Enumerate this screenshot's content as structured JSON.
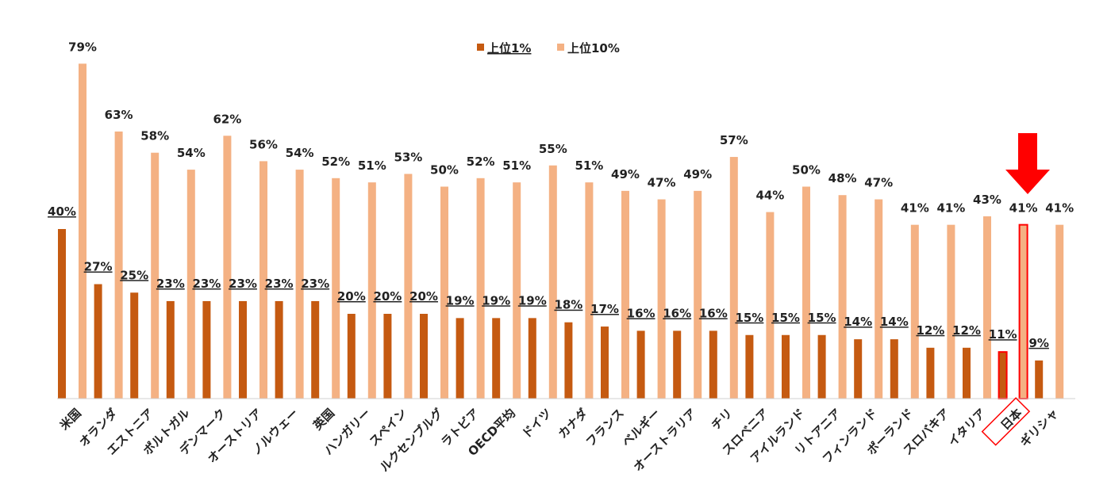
{
  "chart_data": {
    "type": "bar",
    "title": "",
    "xlabel": "",
    "ylabel": "",
    "ylim": [
      0,
      80
    ],
    "grid": false,
    "legend_position": "top-center",
    "categories": [
      "米国",
      "オランダ",
      "エストニア",
      "ポルトガル",
      "デンマーク",
      "オーストリア",
      "ノルウェー",
      "英国",
      "ハンガリー",
      "スペイン",
      "ルクセンブルグ",
      "ラトビア",
      "OECD平均",
      "ドイツ",
      "カナダ",
      "フランス",
      "ベルギー",
      "オーストラリア",
      "チリ",
      "スロベニア",
      "アイルランド",
      "リトアニア",
      "フィンランド",
      "ポーランド",
      "スロバキア",
      "イタリア",
      "日本",
      "ギリシャ"
    ],
    "series": [
      {
        "name": "上位1%",
        "color": "#C55A11",
        "values": [
          40,
          27,
          25,
          23,
          23,
          23,
          23,
          23,
          20,
          20,
          20,
          19,
          19,
          19,
          18,
          17,
          16,
          16,
          16,
          15,
          15,
          15,
          14,
          14,
          12,
          12,
          11,
          9
        ],
        "labels": [
          "40%",
          "27%",
          "25%",
          "23%",
          "23%",
          "23%",
          "23%",
          "23%",
          "20%",
          "20%",
          "20%",
          "19%",
          "19%",
          "19%",
          "18%",
          "17%",
          "16%",
          "16%",
          "16%",
          "15%",
          "15%",
          "15%",
          "14%",
          "14%",
          "12%",
          "12%",
          "11%",
          "9%"
        ]
      },
      {
        "name": "上位10%",
        "color": "#F4B183",
        "values": [
          79,
          63,
          58,
          54,
          62,
          56,
          54,
          52,
          51,
          53,
          50,
          52,
          51,
          55,
          51,
          49,
          47,
          49,
          57,
          44,
          50,
          48,
          47,
          41,
          41,
          43,
          41,
          41
        ],
        "labels": [
          "79%",
          "63%",
          "58%",
          "54%",
          "62%",
          "56%",
          "54%",
          "52%",
          "51%",
          "53%",
          "50%",
          "52%",
          "51%",
          "55%",
          "51%",
          "49%",
          "47%",
          "49%",
          "57%",
          "44%",
          "50%",
          "48%",
          "47%",
          "41%",
          "41%",
          "43%",
          "41%",
          "41%"
        ]
      }
    ],
    "highlight": {
      "category": "日本",
      "outline_color": "#FF0000",
      "arrow": "down-arrow-icon"
    }
  }
}
